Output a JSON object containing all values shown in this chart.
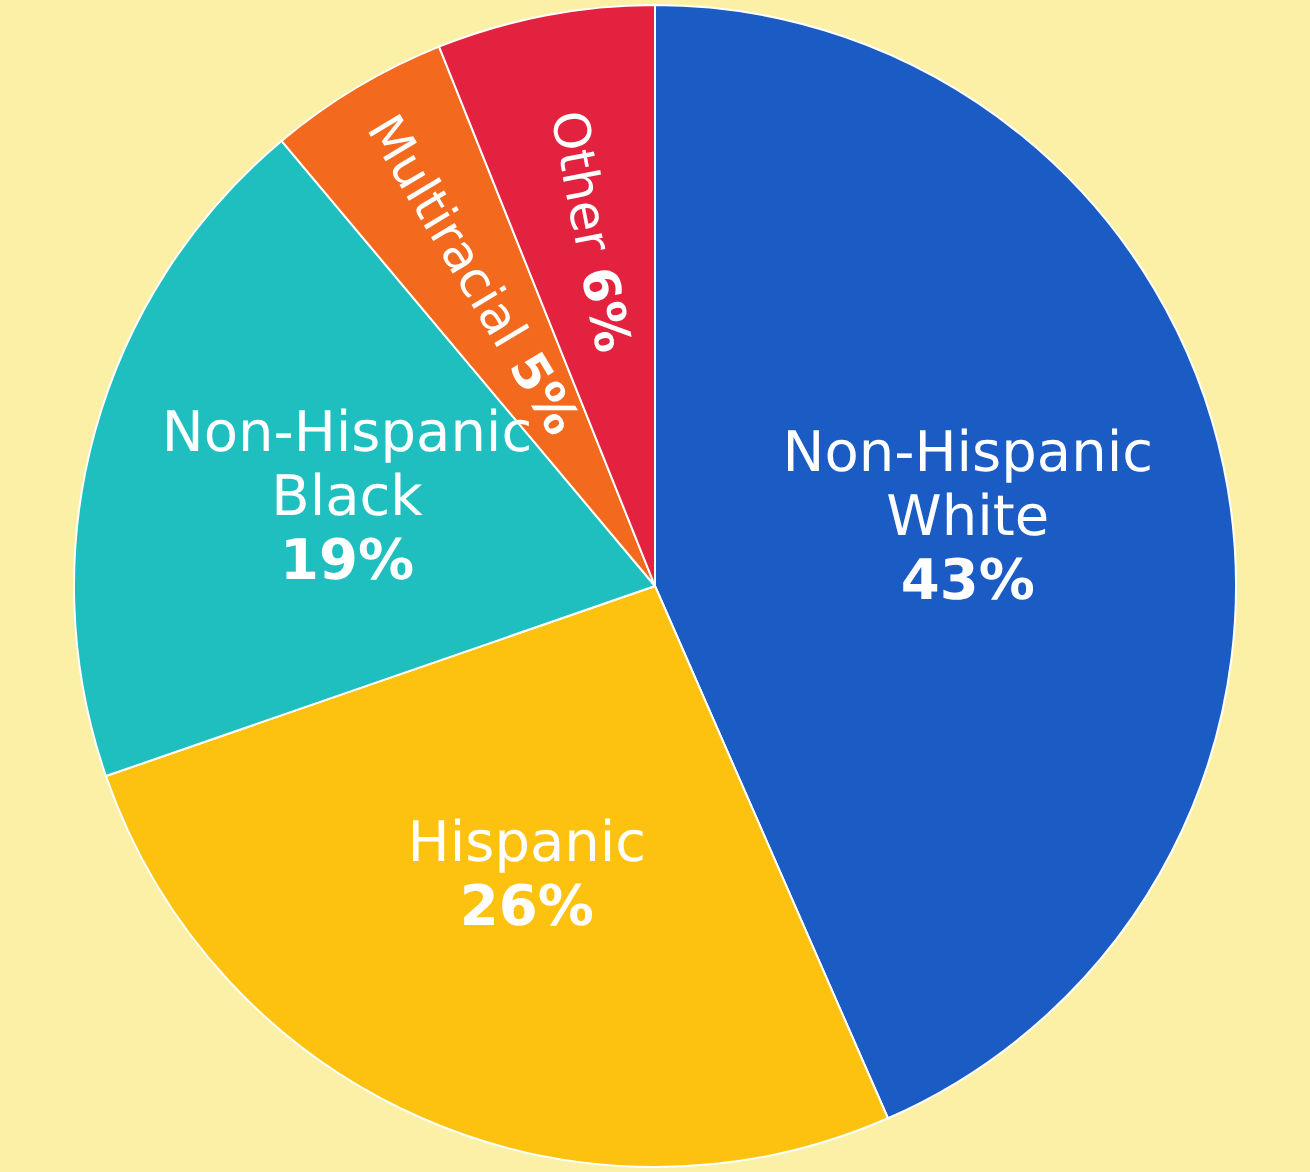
{
  "chart_data": {
    "type": "pie",
    "categories": [
      "Non-Hispanic White",
      "Hispanic",
      "Non-Hispanic Black",
      "Multiracial",
      "Other"
    ],
    "values": [
      43,
      26,
      19,
      5,
      6
    ],
    "colors": [
      "#1b5cc4",
      "#fdc210",
      "#1fbfbf",
      "#f36a1e",
      "#e2223f"
    ],
    "value_labels": [
      "43%",
      "26%",
      "19%",
      "5%",
      "6%"
    ],
    "legend": false
  }
}
